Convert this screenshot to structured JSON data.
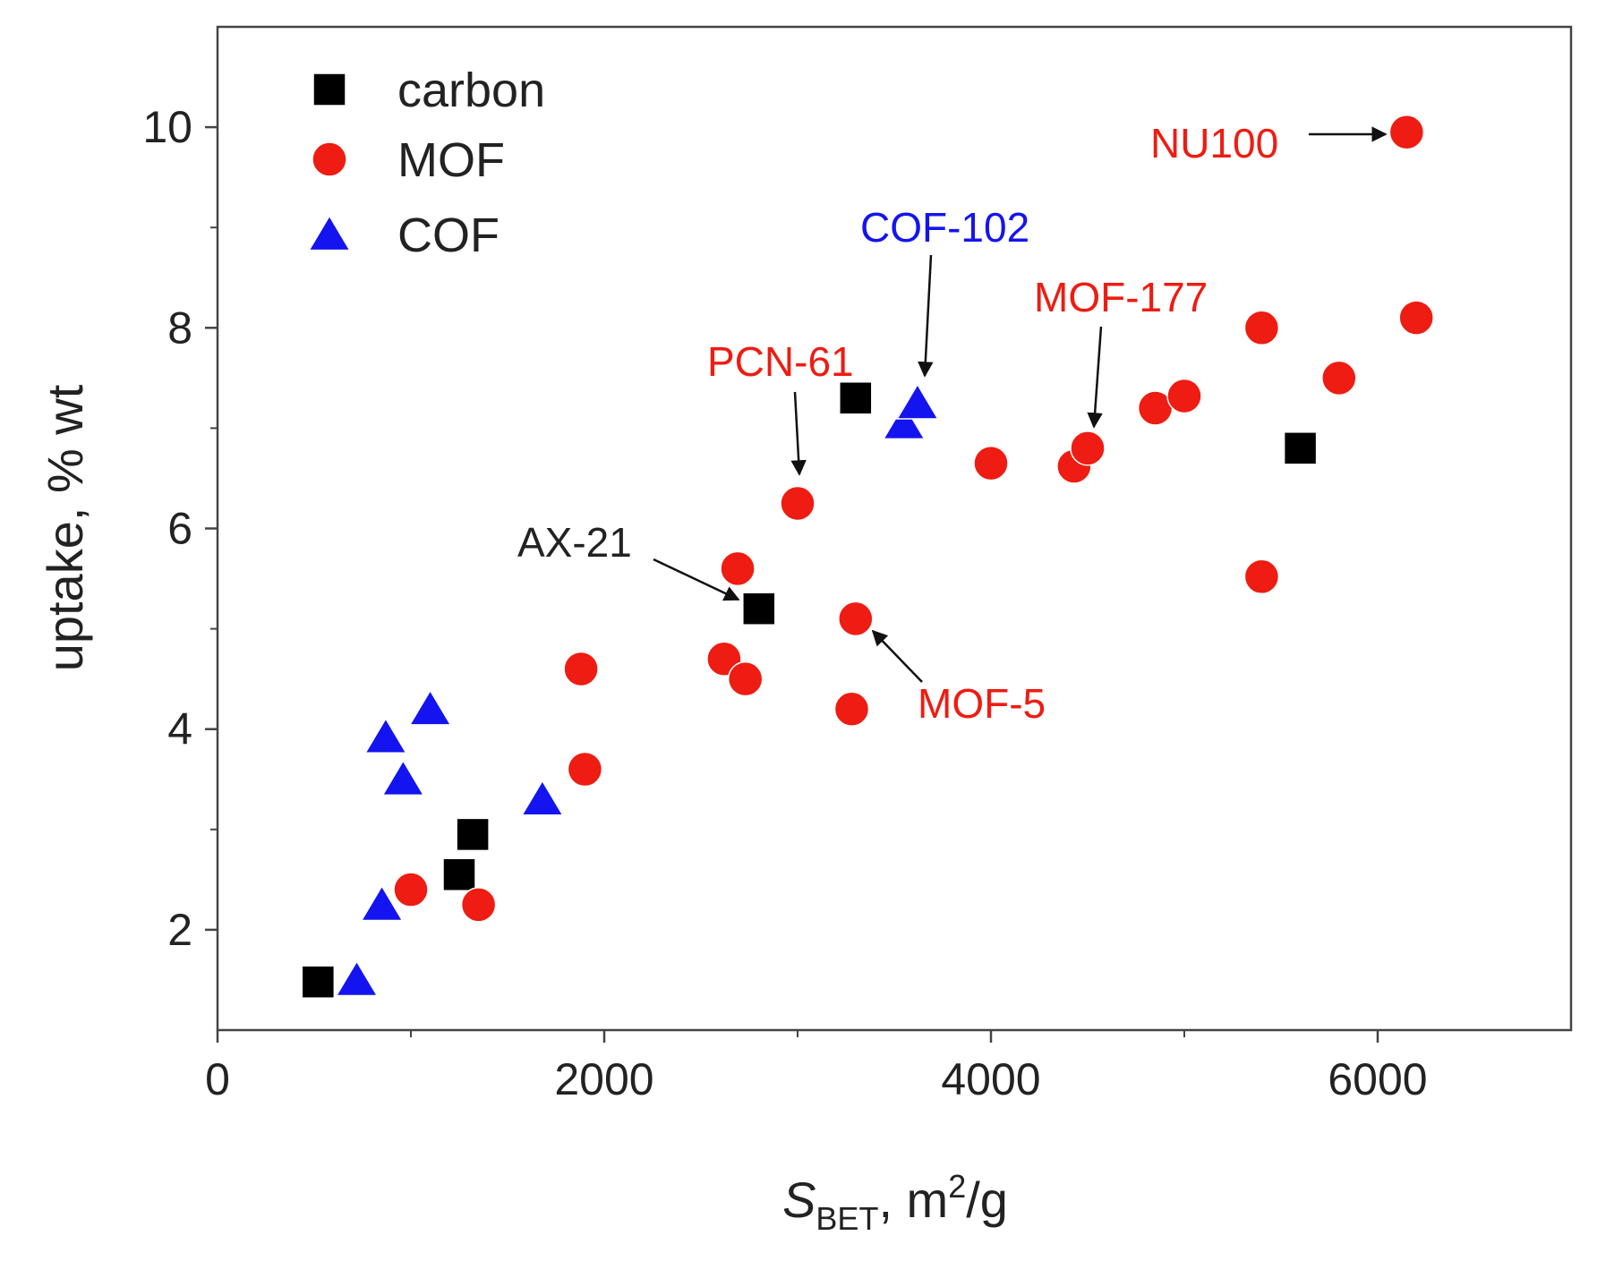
{
  "chart_data": {
    "type": "scatter",
    "title": "",
    "xlabel": {
      "main": "S",
      "sub": "BET",
      "rest": ", m",
      "sup": "2",
      "unit": "/g"
    },
    "ylabel": "uptake, % wt",
    "xlim": [
      0,
      7000
    ],
    "ylim": [
      1,
      11
    ],
    "x_ticks": [
      0,
      2000,
      4000,
      6000
    ],
    "y_ticks": [
      2,
      4,
      6,
      8,
      10
    ],
    "x_tick_labels": [
      "0",
      "2000",
      "4000",
      "6000"
    ],
    "y_tick_labels": [
      "2",
      "4",
      "6",
      "8",
      "10"
    ],
    "grid": false,
    "legend_position": "top-left",
    "series": [
      {
        "name": "carbon",
        "marker": "square",
        "color": "#000000",
        "points": [
          {
            "x": 520,
            "y": 1.48
          },
          {
            "x": 1250,
            "y": 2.55
          },
          {
            "x": 1320,
            "y": 2.95
          },
          {
            "x": 2800,
            "y": 5.2
          },
          {
            "x": 3300,
            "y": 7.3
          },
          {
            "x": 5600,
            "y": 6.8
          }
        ]
      },
      {
        "name": "MOF",
        "marker": "circle",
        "color": "#ee1c12",
        "points": [
          {
            "x": 1000,
            "y": 2.4
          },
          {
            "x": 1350,
            "y": 2.25
          },
          {
            "x": 1880,
            "y": 4.6
          },
          {
            "x": 1900,
            "y": 3.6
          },
          {
            "x": 2620,
            "y": 4.7
          },
          {
            "x": 2690,
            "y": 5.6
          },
          {
            "x": 2730,
            "y": 4.5
          },
          {
            "x": 3000,
            "y": 6.25
          },
          {
            "x": 3300,
            "y": 5.1
          },
          {
            "x": 3280,
            "y": 4.2
          },
          {
            "x": 4000,
            "y": 6.65
          },
          {
            "x": 4430,
            "y": 6.62
          },
          {
            "x": 4500,
            "y": 6.8
          },
          {
            "x": 4850,
            "y": 7.2
          },
          {
            "x": 5000,
            "y": 7.32
          },
          {
            "x": 5400,
            "y": 8.0
          },
          {
            "x": 5400,
            "y": 5.52
          },
          {
            "x": 5800,
            "y": 7.5
          },
          {
            "x": 6150,
            "y": 9.95
          },
          {
            "x": 6200,
            "y": 8.1
          }
        ]
      },
      {
        "name": "COF",
        "marker": "triangle",
        "color": "#1414f0",
        "points": [
          {
            "x": 720,
            "y": 1.5
          },
          {
            "x": 850,
            "y": 2.25
          },
          {
            "x": 870,
            "y": 3.92
          },
          {
            "x": 960,
            "y": 3.5
          },
          {
            "x": 1100,
            "y": 4.2
          },
          {
            "x": 1680,
            "y": 3.3
          },
          {
            "x": 3550,
            "y": 7.05
          },
          {
            "x": 3620,
            "y": 7.25
          }
        ]
      }
    ],
    "annotations": [
      {
        "text": "NU100",
        "color": "#ee1c12",
        "target_x": 6150,
        "target_y": 9.95
      },
      {
        "text": "COF-102",
        "color": "#1414f0",
        "target_x": 3620,
        "target_y": 7.25
      },
      {
        "text": "MOF-177",
        "color": "#ee1c12",
        "target_x": 4500,
        "target_y": 6.8
      },
      {
        "text": "PCN-61",
        "color": "#ee1c12",
        "target_x": 3000,
        "target_y": 6.25
      },
      {
        "text": "AX-21",
        "color": "#222222",
        "target_x": 2800,
        "target_y": 5.2
      },
      {
        "text": "MOF-5",
        "color": "#ee1c12",
        "target_x": 3300,
        "target_y": 5.1
      }
    ]
  }
}
